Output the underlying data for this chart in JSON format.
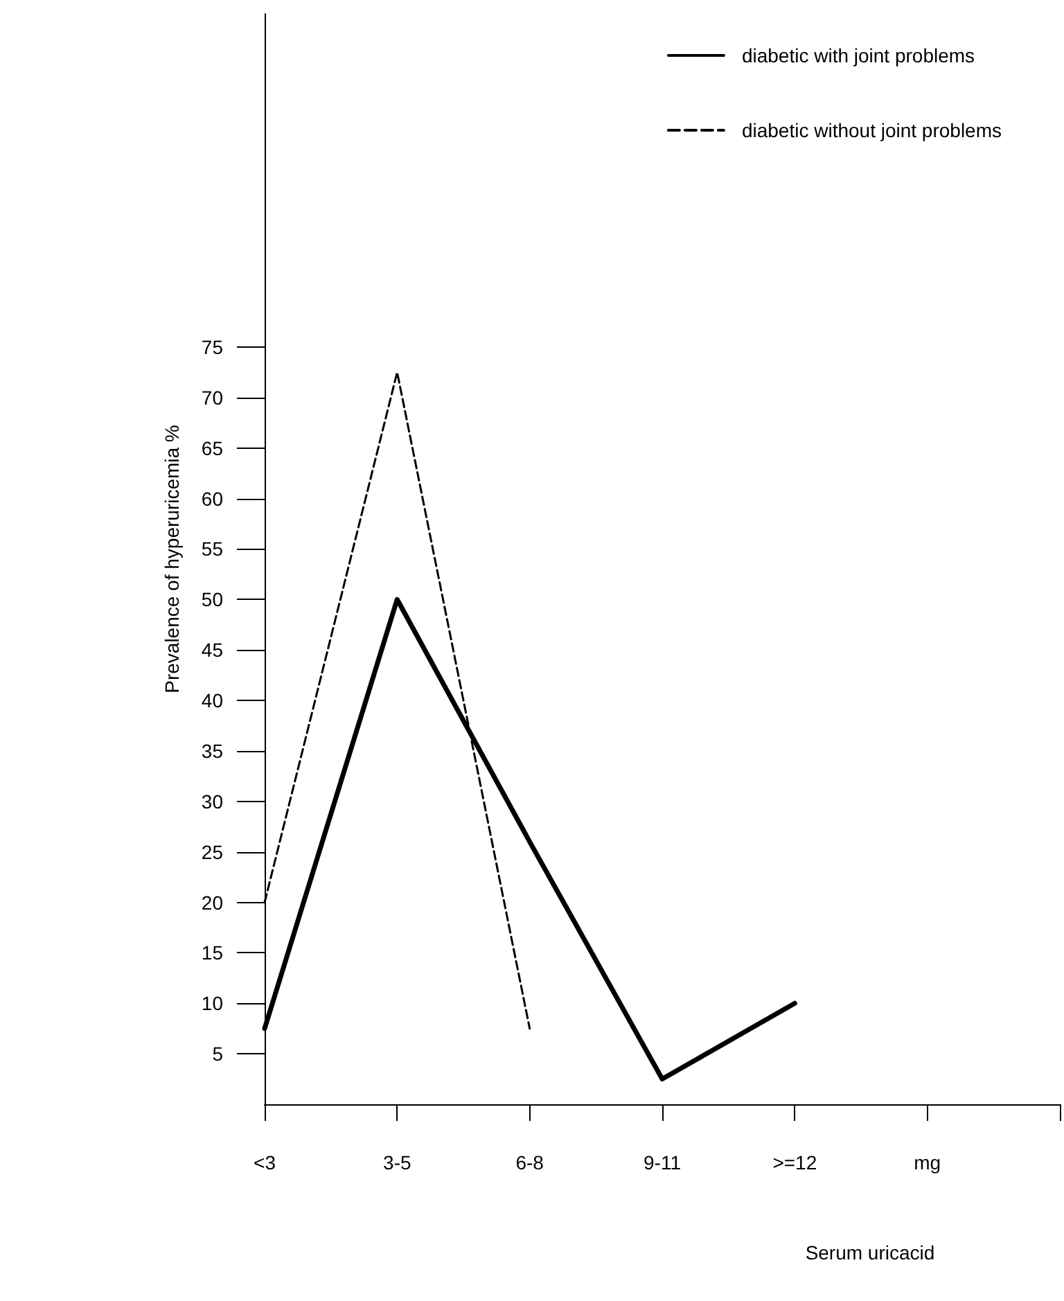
{
  "chart_data": {
    "type": "line",
    "xlabel": "Serum uricacid",
    "ylabel": "Prevalence of hyperuricemia %",
    "categories": [
      "<3",
      "3-5",
      "6-8",
      "9-11",
      ">=12",
      "mg",
      null
    ],
    "series": [
      {
        "name": "diabetic with joint problems",
        "color": "#000000",
        "line_style": "solid",
        "values": [
          7.5,
          50,
          26,
          2.5,
          10,
          null,
          null
        ]
      },
      {
        "name": "diabetic without joint problems",
        "color": "#000000",
        "line_style": "dashed",
        "values": [
          20,
          72.5,
          7.5,
          null,
          null,
          null,
          null
        ]
      }
    ],
    "ylim": [
      0,
      108
    ],
    "yticks": [
      5,
      10,
      15,
      20,
      25,
      30,
      35,
      40,
      45,
      50,
      55,
      60,
      65,
      70,
      75
    ],
    "grid": false,
    "legend": "top right"
  }
}
